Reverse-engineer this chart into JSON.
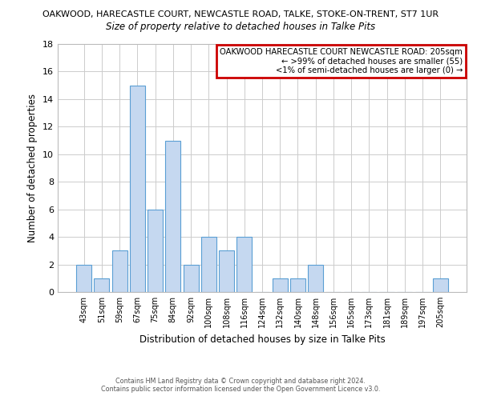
{
  "title_line1": "OAKWOOD, HARECASTLE COURT, NEWCASTLE ROAD, TALKE, STOKE-ON-TRENT, ST7 1UR",
  "title_line2": "Size of property relative to detached houses in Talke Pits",
  "xlabel": "Distribution of detached houses by size in Talke Pits",
  "ylabel": "Number of detached properties",
  "bar_labels": [
    "43sqm",
    "51sqm",
    "59sqm",
    "67sqm",
    "75sqm",
    "84sqm",
    "92sqm",
    "100sqm",
    "108sqm",
    "116sqm",
    "124sqm",
    "132sqm",
    "140sqm",
    "148sqm",
    "156sqm",
    "165sqm",
    "173sqm",
    "181sqm",
    "189sqm",
    "197sqm",
    "205sqm"
  ],
  "bar_values": [
    2,
    1,
    3,
    15,
    6,
    11,
    2,
    4,
    3,
    4,
    0,
    1,
    1,
    2,
    0,
    0,
    0,
    0,
    0,
    0,
    1
  ],
  "bar_color": "#c5d8f0",
  "bar_edge_color": "#5a9fd4",
  "ylim": [
    0,
    18
  ],
  "yticks": [
    0,
    2,
    4,
    6,
    8,
    10,
    12,
    14,
    16,
    18
  ],
  "annotation_line1": "OAKWOOD HARECASTLE COURT NEWCASTLE ROAD: 205sqm",
  "annotation_line2": "← >99% of detached houses are smaller (55)",
  "annotation_line3": "<1% of semi-detached houses are larger (0) →",
  "annotation_box_color": "#ffffff",
  "annotation_box_edge_color": "#cc0000",
  "footer_line1": "Contains HM Land Registry data © Crown copyright and database right 2024.",
  "footer_line2": "Contains public sector information licensed under the Open Government Licence v3.0.",
  "background_color": "#ffffff",
  "grid_color": "#cccccc"
}
